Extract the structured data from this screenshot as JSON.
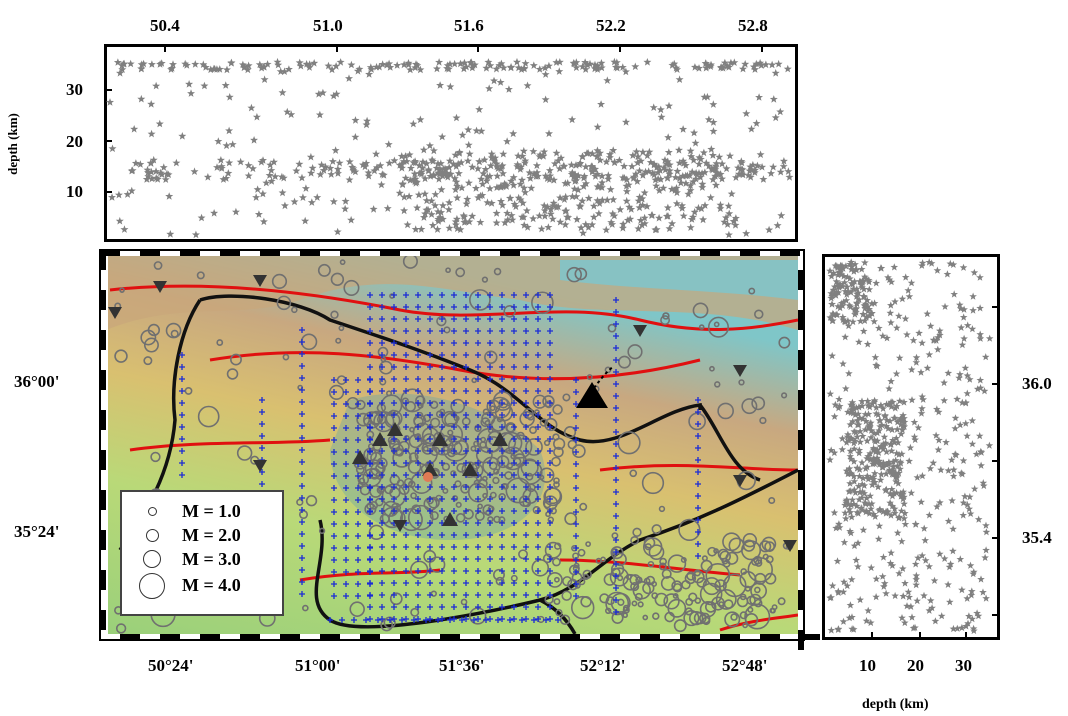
{
  "legend": {
    "items": [
      {
        "label": "M = 1.0",
        "magnitude": 1.0
      },
      {
        "label": "M = 2.0",
        "magnitude": 2.0
      },
      {
        "label": "M = 3.0",
        "magnitude": 3.0
      },
      {
        "label": "M = 4.0",
        "magnitude": 4.0
      }
    ]
  },
  "top_panel": {
    "ylabel": "depth (km)",
    "x_ticks": [
      "50.4",
      "51.0",
      "51.6",
      "52.2",
      "52.8"
    ],
    "y_ticks": [
      "30",
      "20",
      "10"
    ],
    "marker_color": "#808080"
  },
  "right_panel": {
    "xlabel": "depth (km)",
    "x_ticks": [
      "10",
      "20",
      "30"
    ],
    "y_ticks": [
      "36.0",
      "35.4"
    ],
    "marker_color": "#808080"
  },
  "map": {
    "lon_ticks": [
      "50°24'",
      "51°00'",
      "51°36'",
      "52°12'",
      "52°48'"
    ],
    "lat_ticks": [
      "36°00'",
      "35°24'"
    ],
    "colors": {
      "grid_station": "#1a2bd6",
      "fault": "#e01010",
      "boundary": "#111111",
      "event": "#707070",
      "station": "#333333",
      "epicenter": "#e07a55"
    }
  }
}
